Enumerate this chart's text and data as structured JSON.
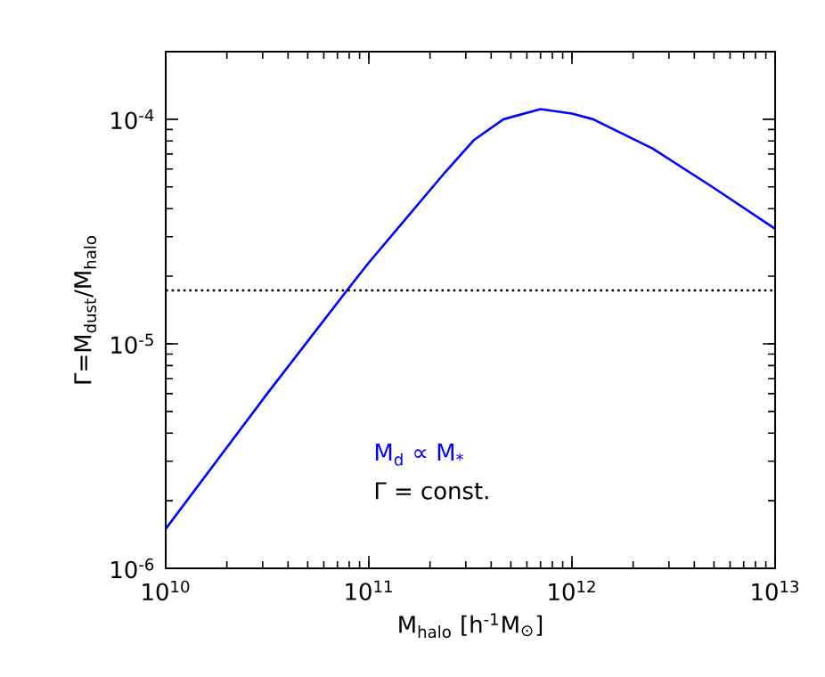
{
  "chart_data": {
    "type": "line",
    "xlabel": "M$_{halo}$  [h$^{-1}$M$_{⊙}$]",
    "ylabel": "Γ=M$_{dust}$/M$_{halo}$",
    "log": "xy",
    "xlim": [
      10000000000.0,
      10000000000000.0
    ],
    "ylim": [
      1e-06,
      0.0002
    ],
    "xticks": [
      {
        "value": 10000000000.0,
        "label": "10$^{10}$"
      },
      {
        "value": 100000000000.0,
        "label": "10$^{11}$"
      },
      {
        "value": 1000000000000.0,
        "label": "10$^{12}$"
      },
      {
        "value": 10000000000000.0,
        "label": "10$^{13}$"
      }
    ],
    "yticks": [
      {
        "value": 1e-06,
        "label": "10$^{-6}$"
      },
      {
        "value": 1e-05,
        "label": "10$^{-5}$"
      },
      {
        "value": 0.0001,
        "label": "10$^{-4}$"
      }
    ],
    "series": [
      {
        "name": "M$_{d}$ ∝ M$_{*}$",
        "color": "#0000ff",
        "x": [
          10000000000.0,
          31600000000.0,
          78000000000.0,
          100000000000.0,
          237000000000.0,
          330000000000.0,
          460000000000.0,
          700000000000.0,
          1000000000000.0,
          1270000000000.0,
          2500000000000.0,
          4900000000000.0,
          10000000000000.0
        ],
        "values": [
          1.5e-06,
          6e-06,
          1.73e-05,
          2.3e-05,
          5.8e-05,
          8.1e-05,
          0.0001,
          0.000111,
          0.000106,
          0.0001,
          7.4e-05,
          5e-05,
          3.25e-05
        ]
      }
    ],
    "ref_lines": [
      {
        "axis": "y",
        "value": 1.73e-05,
        "label": "Γ = const.",
        "color": "#000000",
        "line_style": "dotted"
      }
    ],
    "grid": false
  }
}
